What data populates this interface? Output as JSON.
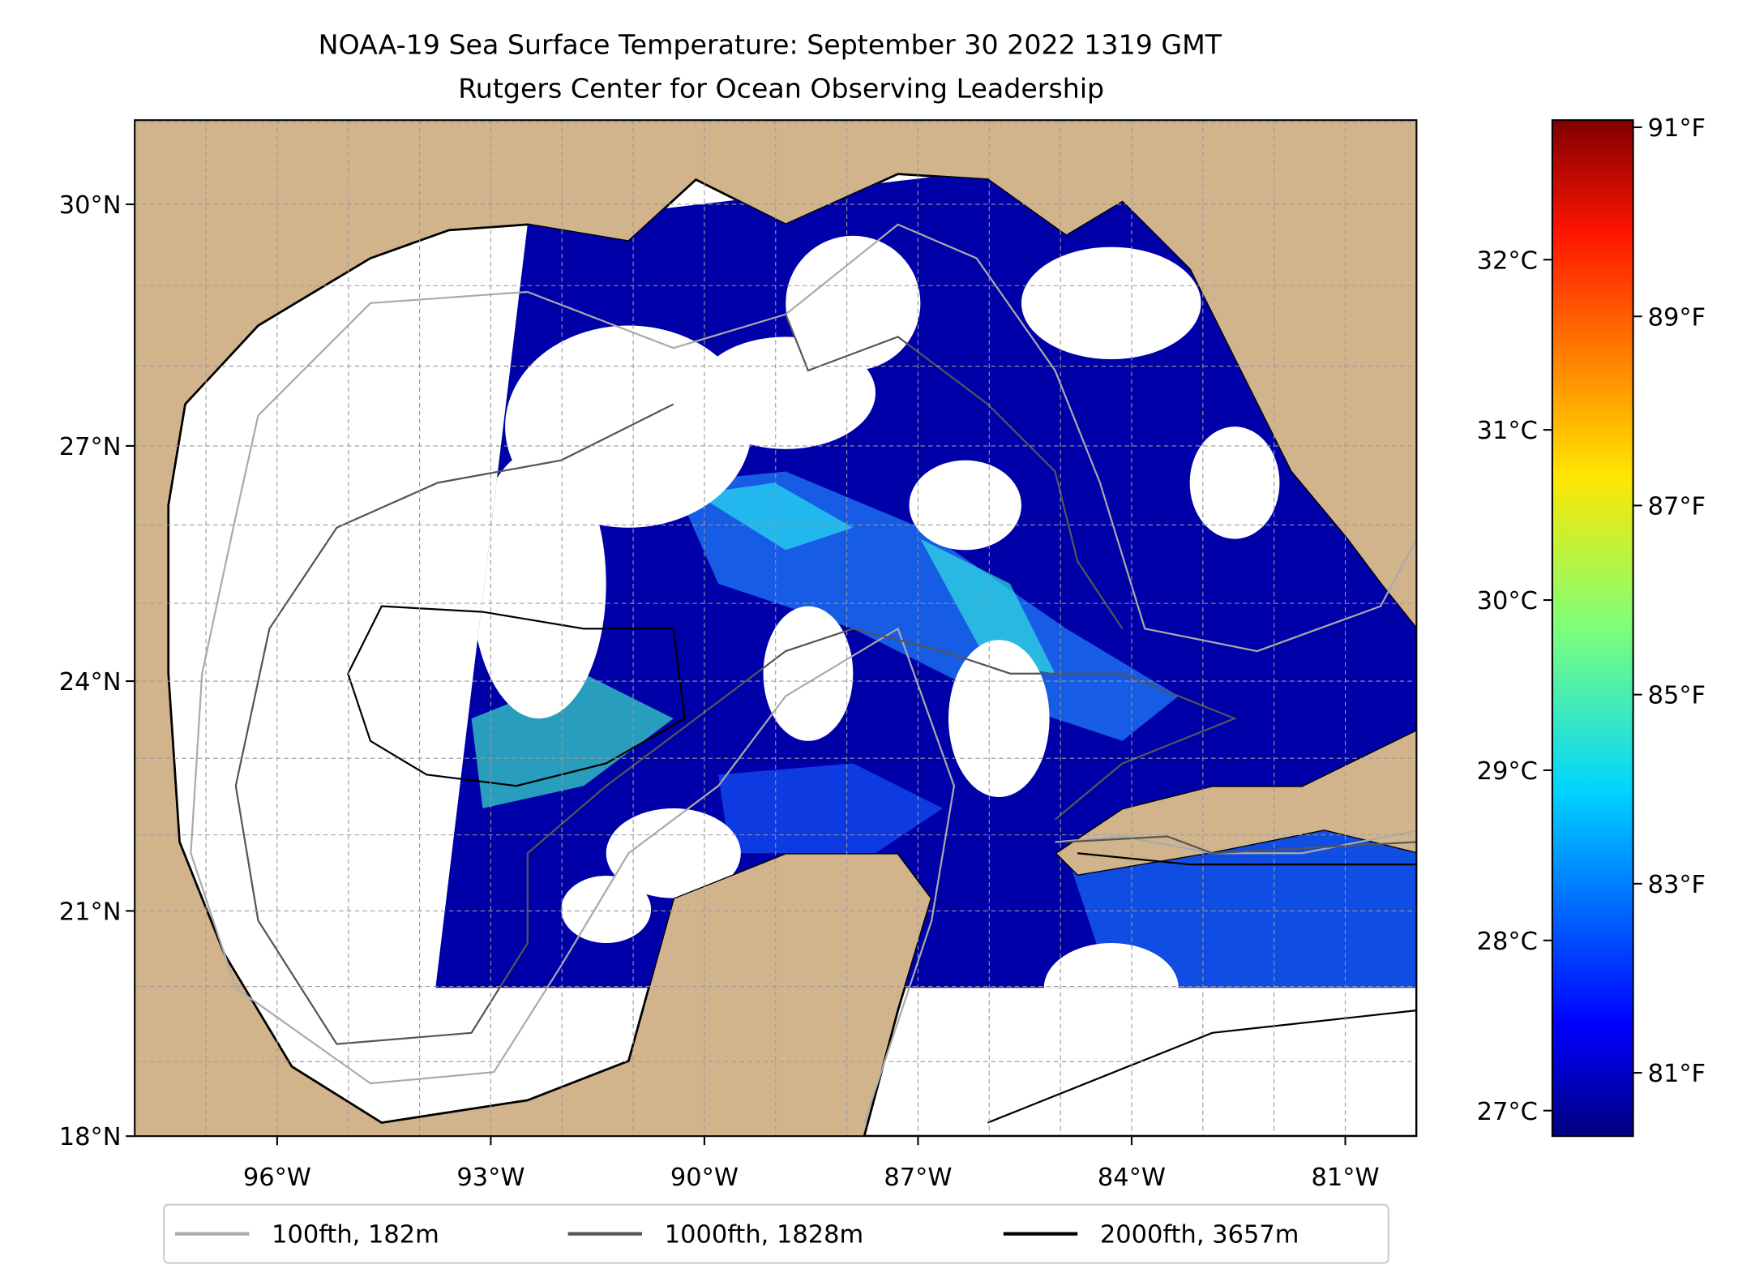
{
  "chart_data": {
    "type": "heatmap",
    "title": "NOAA-19 Sea Surface Temperature: September 30 2022 1319 GMT",
    "subtitle": "Rutgers Center for Ocean Observing Leadership",
    "lon_range": [
      -98,
      -80
    ],
    "lat_range": [
      18,
      31.1
    ],
    "lat_ticks": [
      {
        "value": 18,
        "label": "18°N"
      },
      {
        "value": 21,
        "label": "21°N"
      },
      {
        "value": 24,
        "label": "24°N"
      },
      {
        "value": 27,
        "label": "27°N"
      },
      {
        "value": 30,
        "label": "30°N"
      }
    ],
    "lon_ticks": [
      {
        "value": -96,
        "label": "96°W"
      },
      {
        "value": -93,
        "label": "93°W"
      },
      {
        "value": -90,
        "label": "90°W"
      },
      {
        "value": -87,
        "label": "87°W"
      },
      {
        "value": -84,
        "label": "84°W"
      },
      {
        "value": -81,
        "label": "81°W"
      }
    ],
    "grid": true,
    "colorbar": {
      "colormap": "jet",
      "range_c": [
        26.85,
        32.82
      ],
      "celsius_ticks": [
        {
          "value": 27,
          "label": "27°C"
        },
        {
          "value": 28,
          "label": "28°C"
        },
        {
          "value": 29,
          "label": "29°C"
        },
        {
          "value": 30,
          "label": "30°C"
        },
        {
          "value": 31,
          "label": "31°C"
        },
        {
          "value": 32,
          "label": "32°C"
        }
      ],
      "fahrenheit_ticks": [
        {
          "value": 81,
          "label": "81°F"
        },
        {
          "value": 83,
          "label": "83°F"
        },
        {
          "value": 85,
          "label": "85°F"
        },
        {
          "value": 87,
          "label": "87°F"
        },
        {
          "value": 89,
          "label": "89°F"
        },
        {
          "value": 91,
          "label": "91°F"
        }
      ]
    },
    "legend": {
      "placement": "bottom-center",
      "entries": [
        {
          "label": "100fth, 182m",
          "color": "#aaaaaa"
        },
        {
          "label": "1000fth, 1828m",
          "color": "#555555"
        },
        {
          "label": "2000fth, 3657m",
          "color": "#000000"
        }
      ]
    },
    "colors": {
      "land": "#d2b48c",
      "lakes": "#97b6e1",
      "sst_dominant": "#0000a8"
    }
  }
}
